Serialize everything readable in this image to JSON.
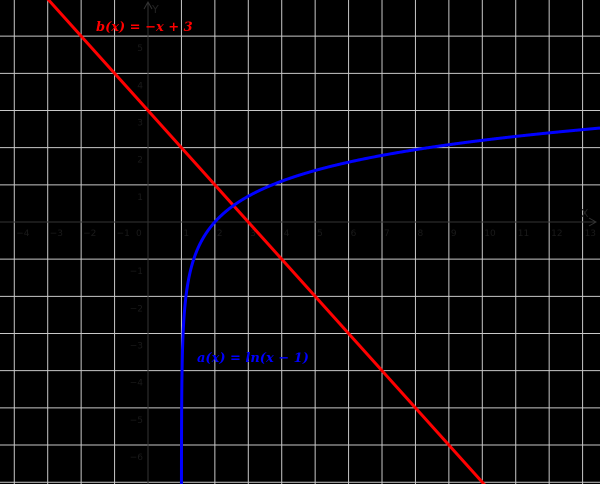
{
  "chart_data": {
    "type": "line",
    "title": "",
    "xlabel": "X",
    "ylabel": "Y",
    "xlim": [
      -4.4,
      13.5
    ],
    "ylim": [
      -7,
      6
    ],
    "grid": true,
    "x_ticks": [
      "-4",
      "-3",
      "-2",
      "-1",
      "0",
      "1",
      "2",
      "3",
      "4",
      "5",
      "6",
      "7",
      "8",
      "9",
      "10",
      "11",
      "12",
      "13"
    ],
    "y_ticks": [
      "5",
      "4",
      "3",
      "2",
      "1",
      "-1",
      "-2",
      "-3",
      "-4",
      "-5",
      "-6"
    ],
    "origin_label": "0",
    "series": [
      {
        "name": "b(x) = -x + 3",
        "expression": "-x+3",
        "color": "#ff0000",
        "x": [
          -3,
          0,
          1,
          2,
          3,
          5,
          8,
          10
        ],
        "y": [
          6,
          3,
          2,
          1,
          0,
          -2,
          -5,
          -7
        ]
      },
      {
        "name": "a(x) = ln(x - 1)",
        "expression": "ln(x-1)",
        "color": "#0000ff",
        "x": [
          1.001,
          1.1,
          1.5,
          2,
          2.5,
          3,
          4,
          6,
          8,
          10,
          13.4
        ],
        "y": [
          -6.91,
          -2.3,
          -0.69,
          0,
          0.41,
          0.69,
          1.1,
          1.61,
          1.95,
          2.2,
          2.52
        ]
      }
    ],
    "annotations": [
      {
        "text": "b(x) = −x + 3",
        "color": "#ff0000",
        "x": -1.4,
        "y": 5.3
      },
      {
        "text": "a(x) = ln(x − 1)",
        "color": "#0000ff",
        "x": 1.4,
        "y": -3.7
      }
    ]
  },
  "labels": {
    "b_label": "b(x)  =  −x + 3",
    "a_label": "a(x)  =  ln(x − 1)",
    "x_axis": "X",
    "y_axis": "Y"
  },
  "colors": {
    "background": "#000000",
    "grid": "#c8c8c8",
    "axis": "#333333",
    "b": "#ff0000",
    "a": "#0000ff"
  }
}
